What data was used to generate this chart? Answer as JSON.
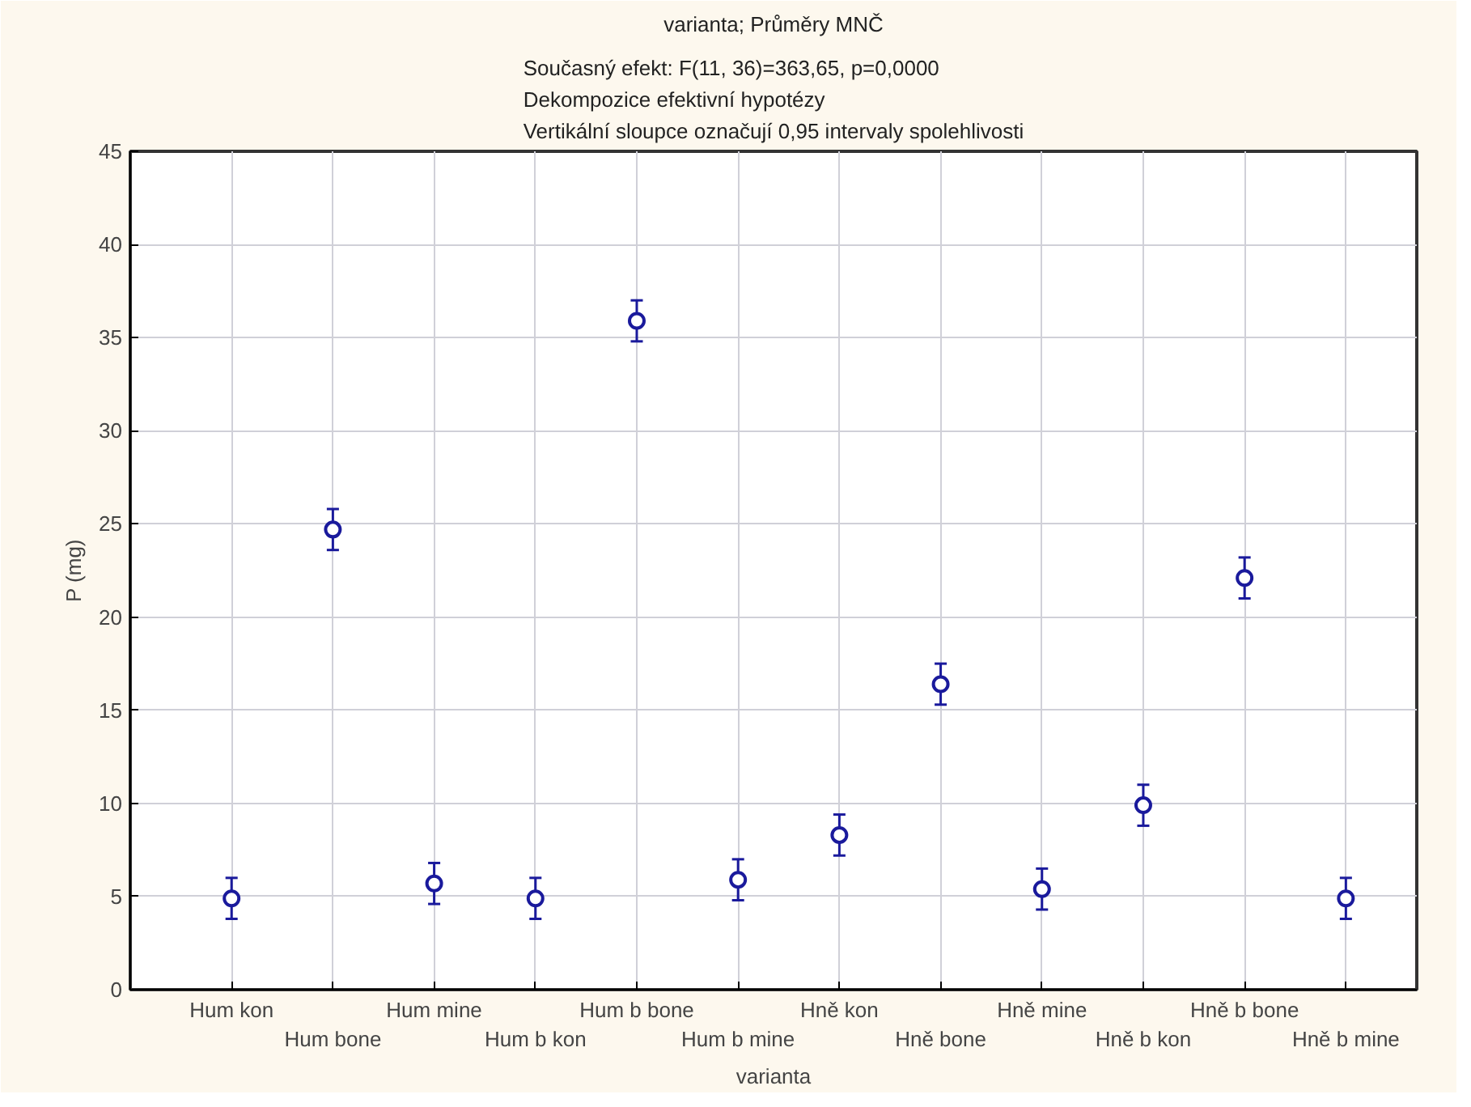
{
  "chart_data": {
    "type": "scatter",
    "title": "varianta; Průměry MNČ",
    "subtitle": "Současný efekt: F(11, 36)=363,65, p=0,0000\nDekompozice efektivní hypotézy\nVertikální sloupce označují 0,95 intervaly spolehlivosti",
    "xlabel": "varianta",
    "ylabel": "P (mg)",
    "categories": [
      "Hum kon",
      "Hum bone",
      "Hum mine",
      "Hum b kon",
      "Hum b bone",
      "Hum b mine",
      "Hně kon",
      "Hně bone",
      "Hně mine",
      "Hně b kon",
      "Hně b bone",
      "Hně b mine"
    ],
    "values": [
      4.9,
      24.7,
      5.7,
      4.9,
      35.9,
      5.9,
      8.3,
      16.4,
      5.4,
      9.9,
      22.1,
      4.9
    ],
    "errors": [
      1.1,
      1.1,
      1.1,
      1.1,
      1.1,
      1.1,
      1.1,
      1.1,
      1.1,
      1.1,
      1.1,
      1.1
    ],
    "color": "#1a1a9c",
    "ylim": [
      0,
      45
    ],
    "yticks": [
      0,
      5,
      10,
      15,
      20,
      25,
      30,
      35,
      40,
      45
    ],
    "grid": true,
    "marker": "circle"
  }
}
